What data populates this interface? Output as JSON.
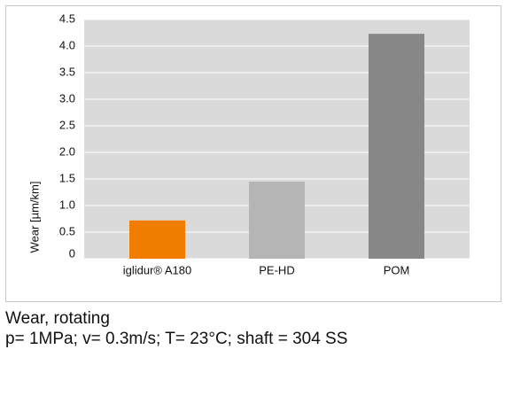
{
  "chart_data": {
    "type": "bar",
    "title": "Wear, rotating",
    "subtitle": "p= 1MPa; v= 0.3m/s; T= 23°C; shaft = 304 SS",
    "y_label": "Wear [µm/km]",
    "categories": [
      "iglidur® A180",
      "PE-HD",
      "POM"
    ],
    "values": [
      0.72,
      1.45,
      4.23
    ],
    "colors": [
      "#f07d00",
      "#b5b5b5",
      "#878787"
    ],
    "ylim": [
      0,
      4.5
    ],
    "yticks": [
      0,
      0.5,
      {
        "value": 1,
        "label": "1.0"
      },
      1.5,
      {
        "value": 2,
        "label": "2.0"
      },
      2.5,
      {
        "value": 3,
        "label": "3.0"
      },
      3.5,
      {
        "value": 4,
        "label": "4.0"
      },
      4.5
    ],
    "grid": true
  }
}
